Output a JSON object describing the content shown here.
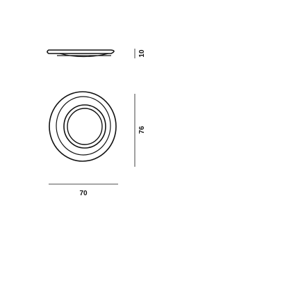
{
  "dimensions": {
    "side_thickness": "10",
    "front_height": "76",
    "front_width": "70"
  },
  "colors": {
    "line": "#111111",
    "background": "#ffffff"
  }
}
